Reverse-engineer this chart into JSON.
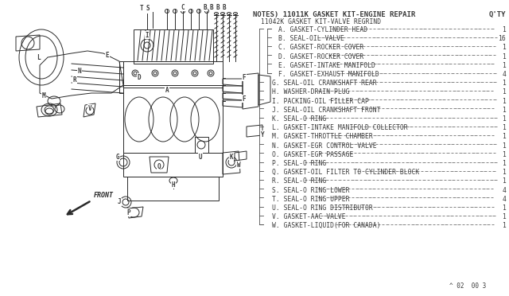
{
  "bg_color": "#ffffff",
  "title_notes": "NOTES) 11011K GASKET KIT-ENGINE REPAIR",
  "title_qty": "Q'TY",
  "subtitle": "11042K GASKET KIT-VALVE REGRIND",
  "parts": [
    {
      "letter": "A",
      "desc": "GASKET-CYLINDER HEAD",
      "qty": "1",
      "group": "inner"
    },
    {
      "letter": "B",
      "desc": "SEAL-OIL VALVE",
      "qty": "16",
      "group": "inner"
    },
    {
      "letter": "C",
      "desc": "GASKET-ROCKER COVER",
      "qty": "1",
      "group": "inner"
    },
    {
      "letter": "D",
      "desc": "GASKET-ROCKER COVER",
      "qty": "1",
      "group": "inner"
    },
    {
      "letter": "E",
      "desc": "GASKET-INTAKE MANIFOLD",
      "qty": "1",
      "group": "inner"
    },
    {
      "letter": "F",
      "desc": "GASKET-EXHAUST MANIFOLD",
      "qty": "4",
      "group": "inner"
    },
    {
      "letter": "G",
      "desc": "SEAL-OIL CRANKSHAFT REAR",
      "qty": "1",
      "group": "outer"
    },
    {
      "letter": "H",
      "desc": "WASHER-DRAIN PLUG",
      "qty": "1",
      "group": "outer"
    },
    {
      "letter": "I",
      "desc": "PACKING-OIL FILLER CAP",
      "qty": "1",
      "group": "outer"
    },
    {
      "letter": "J",
      "desc": "SEAL-OIL CRANKSHAFT FRONT",
      "qty": "1",
      "group": "outer"
    },
    {
      "letter": "K",
      "desc": "SEAL-O RING",
      "qty": "1",
      "group": "outer"
    },
    {
      "letter": "L",
      "desc": "GASKET-INTAKE MANIFOLD COLLECTOR",
      "qty": "1",
      "group": "outer"
    },
    {
      "letter": "M",
      "desc": "GASKET-THROTTLE CHAMBER",
      "qty": "1",
      "group": "outer"
    },
    {
      "letter": "N",
      "desc": "GASKET-EGR CONTROL VALVE",
      "qty": "1",
      "group": "outer"
    },
    {
      "letter": "O",
      "desc": "GASKET-EGR PASSAGE",
      "qty": "1",
      "group": "outer"
    },
    {
      "letter": "P",
      "desc": "SEAL-O RING",
      "qty": "1",
      "group": "outer"
    },
    {
      "letter": "Q",
      "desc": "GASKET-OIL FILTER TO CYLINDER BLOCK",
      "qty": "1",
      "group": "outer"
    },
    {
      "letter": "R",
      "desc": "SEAL-O RING",
      "qty": "1",
      "group": "outer"
    },
    {
      "letter": "S",
      "desc": "SEAL-O RING LOWER",
      "qty": "4",
      "group": "outer"
    },
    {
      "letter": "T",
      "desc": "SEAL-O RING UPPER",
      "qty": "4",
      "group": "outer"
    },
    {
      "letter": "U",
      "desc": "SEAL-O RING DISTRIBUTOR",
      "qty": "1",
      "group": "outer"
    },
    {
      "letter": "V",
      "desc": "GASKET-AAC VALVE",
      "qty": "1",
      "group": "outer"
    },
    {
      "letter": "W",
      "desc": "GASKET-LIQUID(FOR CANADA)",
      "qty": "1",
      "group": "outer"
    }
  ],
  "footer": "^ 02  00 3",
  "text_color": "#3a3a3a",
  "line_color": "#505050",
  "engine_color": "#2a2a2a"
}
